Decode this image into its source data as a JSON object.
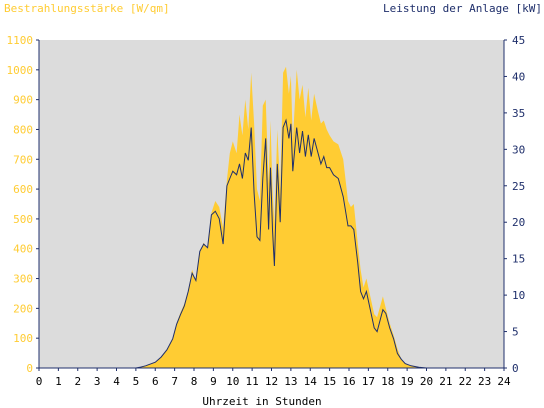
{
  "chart_data": {
    "type": "area",
    "left_axis_label": "Bestrahlungsstärke [W/qm]",
    "right_axis_label": "Leistung der Anlage [kW]",
    "xlabel": "Uhrzeit in Stunden",
    "x_range": [
      0,
      24
    ],
    "y_left_range": [
      0,
      1100
    ],
    "y_right_range": [
      0,
      45
    ],
    "x_ticks": [
      "0",
      "1",
      "2",
      "3",
      "4",
      "5",
      "6",
      "7",
      "8",
      "9",
      "10",
      "11",
      "12",
      "13",
      "14",
      "15",
      "16",
      "17",
      "18",
      "19",
      "20",
      "21",
      "22",
      "23",
      "24"
    ],
    "y_left_ticks": [
      "0",
      "100",
      "200",
      "300",
      "400",
      "500",
      "600",
      "700",
      "800",
      "900",
      "1000",
      "1100"
    ],
    "y_right_ticks": [
      "0",
      "5",
      "10",
      "15",
      "20",
      "25",
      "30",
      "35",
      "40",
      "45"
    ],
    "colors": {
      "plot_background": "#dcdcdc",
      "irradiance_fill": "#ffcc33",
      "power_line": "#1f2f6b",
      "left_axis_text": "#ffcc33",
      "right_axis_text": "#1f2f6b",
      "axis": "#1f2f6b"
    },
    "series": [
      {
        "name": "Bestrahlungsstärke [W/qm]",
        "axis": "left",
        "style": "area",
        "points": [
          [
            0,
            0
          ],
          [
            5,
            0
          ],
          [
            5.2,
            3
          ],
          [
            5.5,
            8
          ],
          [
            6,
            20
          ],
          [
            6.3,
            35
          ],
          [
            6.6,
            60
          ],
          [
            6.9,
            100
          ],
          [
            7.1,
            150
          ],
          [
            7.3,
            185
          ],
          [
            7.5,
            215
          ],
          [
            7.7,
            260
          ],
          [
            7.9,
            330
          ],
          [
            8.1,
            290
          ],
          [
            8.3,
            390
          ],
          [
            8.5,
            420
          ],
          [
            8.7,
            400
          ],
          [
            8.9,
            520
          ],
          [
            9.1,
            560
          ],
          [
            9.3,
            540
          ],
          [
            9.5,
            470
          ],
          [
            9.7,
            630
          ],
          [
            9.85,
            720
          ],
          [
            10,
            760
          ],
          [
            10.2,
            720
          ],
          [
            10.35,
            850
          ],
          [
            10.5,
            780
          ],
          [
            10.65,
            900
          ],
          [
            10.8,
            800
          ],
          [
            10.95,
            990
          ],
          [
            11.1,
            820
          ],
          [
            11.25,
            600
          ],
          [
            11.4,
            560
          ],
          [
            11.55,
            880
          ],
          [
            11.7,
            900
          ],
          [
            11.85,
            620
          ],
          [
            11.95,
            830
          ],
          [
            12.05,
            600
          ],
          [
            12.15,
            480
          ],
          [
            12.3,
            800
          ],
          [
            12.45,
            600
          ],
          [
            12.6,
            990
          ],
          [
            12.75,
            1010
          ],
          [
            12.9,
            920
          ],
          [
            13,
            980
          ],
          [
            13.1,
            760
          ],
          [
            13.3,
            1000
          ],
          [
            13.45,
            900
          ],
          [
            13.6,
            950
          ],
          [
            13.75,
            840
          ],
          [
            13.9,
            940
          ],
          [
            14.05,
            830
          ],
          [
            14.2,
            920
          ],
          [
            14.4,
            860
          ],
          [
            14.55,
            820
          ],
          [
            14.7,
            830
          ],
          [
            14.85,
            800
          ],
          [
            15,
            780
          ],
          [
            15.2,
            760
          ],
          [
            15.45,
            750
          ],
          [
            15.7,
            700
          ],
          [
            15.95,
            560
          ],
          [
            16.1,
            540
          ],
          [
            16.25,
            550
          ],
          [
            16.45,
            420
          ],
          [
            16.6,
            330
          ],
          [
            16.75,
            270
          ],
          [
            16.9,
            300
          ],
          [
            17.1,
            240
          ],
          [
            17.3,
            180
          ],
          [
            17.45,
            170
          ],
          [
            17.6,
            205
          ],
          [
            17.75,
            240
          ],
          [
            17.9,
            200
          ],
          [
            18.1,
            150
          ],
          [
            18.3,
            110
          ],
          [
            18.5,
            65
          ],
          [
            18.7,
            30
          ],
          [
            18.9,
            15
          ],
          [
            19.2,
            8
          ],
          [
            19.6,
            3
          ],
          [
            20,
            1
          ],
          [
            20.2,
            0
          ],
          [
            24,
            0
          ]
        ]
      },
      {
        "name": "Leistung der Anlage [kW]",
        "axis": "right",
        "style": "line",
        "points": [
          [
            0,
            0
          ],
          [
            5,
            0
          ],
          [
            5.2,
            0.1
          ],
          [
            5.5,
            0.3
          ],
          [
            6,
            0.8
          ],
          [
            6.3,
            1.5
          ],
          [
            6.6,
            2.5
          ],
          [
            6.9,
            4
          ],
          [
            7.1,
            6
          ],
          [
            7.3,
            7.3
          ],
          [
            7.5,
            8.5
          ],
          [
            7.7,
            10.5
          ],
          [
            7.9,
            13
          ],
          [
            8.1,
            12
          ],
          [
            8.3,
            16
          ],
          [
            8.5,
            17
          ],
          [
            8.7,
            16.5
          ],
          [
            8.9,
            21
          ],
          [
            9.1,
            21.5
          ],
          [
            9.3,
            20.5
          ],
          [
            9.5,
            17
          ],
          [
            9.7,
            25
          ],
          [
            9.85,
            26
          ],
          [
            10,
            27
          ],
          [
            10.2,
            26.5
          ],
          [
            10.35,
            28
          ],
          [
            10.5,
            26
          ],
          [
            10.65,
            29.5
          ],
          [
            10.8,
            28.5
          ],
          [
            10.95,
            33
          ],
          [
            11.1,
            24
          ],
          [
            11.25,
            18
          ],
          [
            11.4,
            17.5
          ],
          [
            11.55,
            26
          ],
          [
            11.7,
            31.5
          ],
          [
            11.85,
            19
          ],
          [
            11.95,
            27.5
          ],
          [
            12.05,
            19
          ],
          [
            12.15,
            14
          ],
          [
            12.3,
            28
          ],
          [
            12.45,
            20
          ],
          [
            12.6,
            33
          ],
          [
            12.75,
            34
          ],
          [
            12.9,
            31.5
          ],
          [
            13,
            33.5
          ],
          [
            13.1,
            27
          ],
          [
            13.3,
            33
          ],
          [
            13.45,
            29.5
          ],
          [
            13.6,
            32.5
          ],
          [
            13.75,
            29
          ],
          [
            13.9,
            32
          ],
          [
            14.05,
            29
          ],
          [
            14.2,
            31.5
          ],
          [
            14.4,
            29.5
          ],
          [
            14.55,
            28
          ],
          [
            14.7,
            29
          ],
          [
            14.85,
            27.5
          ],
          [
            15,
            27.5
          ],
          [
            15.2,
            26.5
          ],
          [
            15.45,
            26
          ],
          [
            15.7,
            23.5
          ],
          [
            15.95,
            19.5
          ],
          [
            16.1,
            19.5
          ],
          [
            16.25,
            19
          ],
          [
            16.45,
            14.5
          ],
          [
            16.6,
            10.5
          ],
          [
            16.75,
            9.5
          ],
          [
            16.9,
            10.5
          ],
          [
            17.1,
            8
          ],
          [
            17.3,
            5.5
          ],
          [
            17.45,
            5
          ],
          [
            17.6,
            6.5
          ],
          [
            17.75,
            8
          ],
          [
            17.9,
            7.5
          ],
          [
            18.1,
            5.5
          ],
          [
            18.3,
            4
          ],
          [
            18.5,
            2
          ],
          [
            18.7,
            1.2
          ],
          [
            18.9,
            0.6
          ],
          [
            19.2,
            0.3
          ],
          [
            19.6,
            0.1
          ],
          [
            20,
            0
          ],
          [
            24,
            0
          ]
        ]
      }
    ]
  }
}
